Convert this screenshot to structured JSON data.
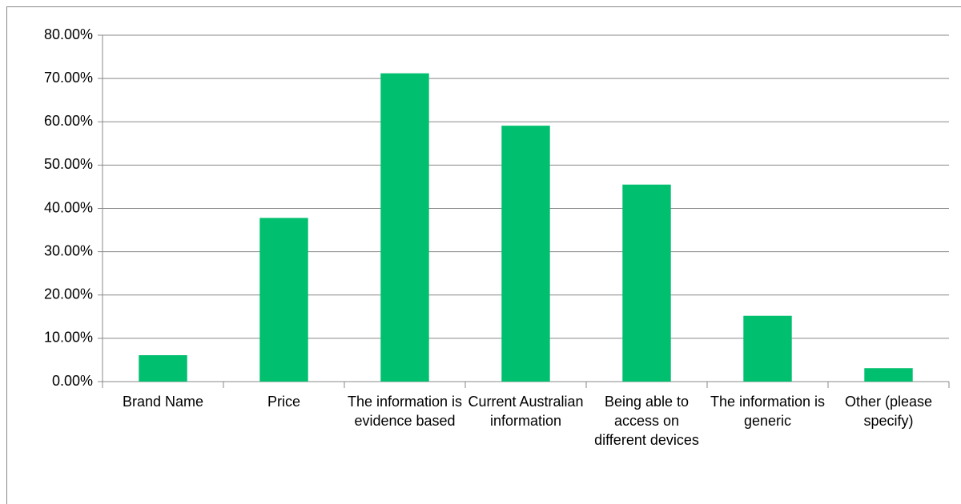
{
  "chart_data": {
    "type": "bar",
    "categories": [
      "Brand Name",
      "Price",
      "The information is evidence based",
      "Current Australian information",
      "Being able to access on different devices",
      "The information is generic",
      "Other (please specify)"
    ],
    "values": [
      6.1,
      37.8,
      71.2,
      59.1,
      45.5,
      15.2,
      3.1
    ],
    "color": "#00bf6f",
    "ylim": [
      0,
      80
    ],
    "yticks": [
      {
        "value": 0,
        "label": "0.00%"
      },
      {
        "value": 10,
        "label": "10.00%"
      },
      {
        "value": 20,
        "label": "20.00%"
      },
      {
        "value": 30,
        "label": "30.00%"
      },
      {
        "value": 40,
        "label": "40.00%"
      },
      {
        "value": 50,
        "label": "50.00%"
      },
      {
        "value": 60,
        "label": "60.00%"
      },
      {
        "value": 70,
        "label": "70.00%"
      },
      {
        "value": 80,
        "label": "80.00%"
      }
    ],
    "grid": true
  }
}
